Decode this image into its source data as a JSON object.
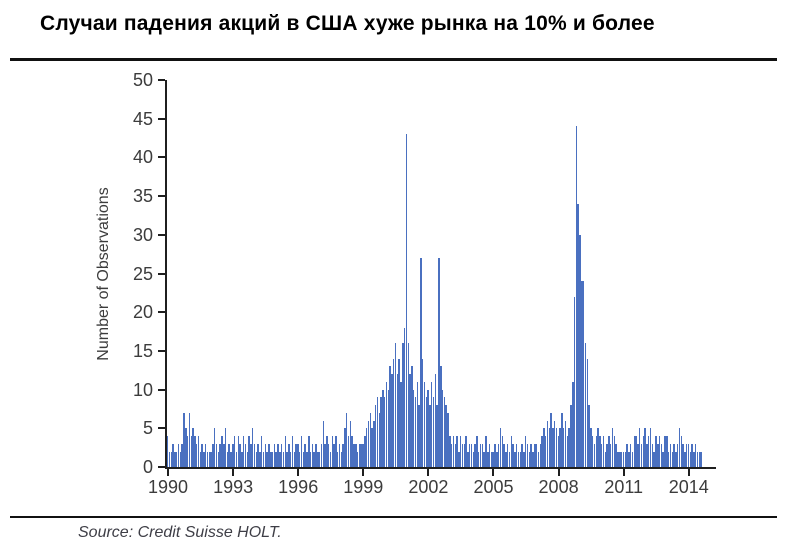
{
  "page": {
    "title": "Случаи падения акций в США хуже рынка на 10% и более",
    "source": "Source: Credit Suisse HOLT."
  },
  "chart_data": {
    "type": "bar",
    "title": "Случаи падения акций в США хуже рынка на 10% и более",
    "xlabel": "",
    "ylabel": "Number of Observations",
    "ylim": [
      0,
      50
    ],
    "y_ticks": [
      0,
      5,
      10,
      15,
      20,
      25,
      30,
      35,
      40,
      45,
      50
    ],
    "x_ticks": [
      1990,
      1993,
      1996,
      1999,
      2002,
      2005,
      2008,
      2011,
      2014
    ],
    "x_start_year": 1990,
    "x_axis_end_year": 2015.3,
    "points_per_year": 12,
    "grid": false,
    "legend": false,
    "bar_color": "#4a70c0",
    "series": [
      {
        "name": "Number of Observations",
        "frequency": "monthly",
        "values": [
          4,
          2,
          2,
          3,
          2,
          2,
          3,
          2,
          3,
          7,
          5,
          4,
          7,
          4,
          5,
          4,
          3,
          4,
          2,
          3,
          2,
          3,
          2,
          2,
          2,
          3,
          5,
          3,
          2,
          3,
          4,
          3,
          5,
          2,
          3,
          2,
          3,
          4,
          2,
          4,
          3,
          2,
          4,
          3,
          2,
          4,
          3,
          5,
          3,
          2,
          3,
          2,
          4,
          2,
          3,
          2,
          3,
          2,
          2,
          3,
          2,
          3,
          2,
          3,
          2,
          4,
          2,
          3,
          2,
          4,
          2,
          3,
          3,
          2,
          4,
          2,
          3,
          2,
          4,
          2,
          3,
          2,
          3,
          2,
          2,
          3,
          6,
          3,
          4,
          3,
          2,
          4,
          3,
          4,
          2,
          3,
          2,
          3,
          5,
          7,
          4,
          6,
          4,
          3,
          3,
          2,
          3,
          3,
          3,
          4,
          5,
          6,
          7,
          5,
          6,
          8,
          9,
          7,
          9,
          10,
          9,
          11,
          10,
          13,
          12,
          14,
          16,
          12,
          14,
          11,
          16,
          18,
          43,
          16,
          12,
          13,
          10,
          9,
          11,
          8,
          27,
          14,
          11,
          9,
          10,
          8,
          11,
          9,
          12,
          8,
          27,
          13,
          10,
          9,
          8,
          7,
          4,
          3,
          4,
          3,
          4,
          2,
          4,
          3,
          3,
          4,
          2,
          3,
          3,
          2,
          3,
          4,
          2,
          3,
          3,
          2,
          4,
          2,
          3,
          2,
          2,
          3,
          2,
          3,
          5,
          4,
          3,
          2,
          3,
          2,
          4,
          3,
          2,
          3,
          2,
          2,
          3,
          2,
          4,
          3,
          2,
          3,
          2,
          3,
          3,
          2,
          3,
          4,
          5,
          4,
          6,
          5,
          7,
          5,
          6,
          5,
          4,
          5,
          7,
          5,
          6,
          4,
          5,
          8,
          11,
          22,
          44,
          34,
          30,
          24,
          24,
          16,
          14,
          8,
          5,
          4,
          3,
          4,
          5,
          4,
          3,
          4,
          2,
          3,
          4,
          3,
          5,
          4,
          3,
          2,
          2,
          2,
          2,
          2,
          3,
          2,
          3,
          2,
          4,
          4,
          3,
          5,
          3,
          4,
          5,
          3,
          4,
          5,
          3,
          2,
          4,
          3,
          4,
          3,
          2,
          4,
          4,
          2,
          3,
          2,
          3,
          2,
          3,
          5,
          4,
          3,
          2,
          3,
          3,
          2,
          3,
          2,
          3,
          2,
          2,
          2
        ]
      }
    ]
  }
}
